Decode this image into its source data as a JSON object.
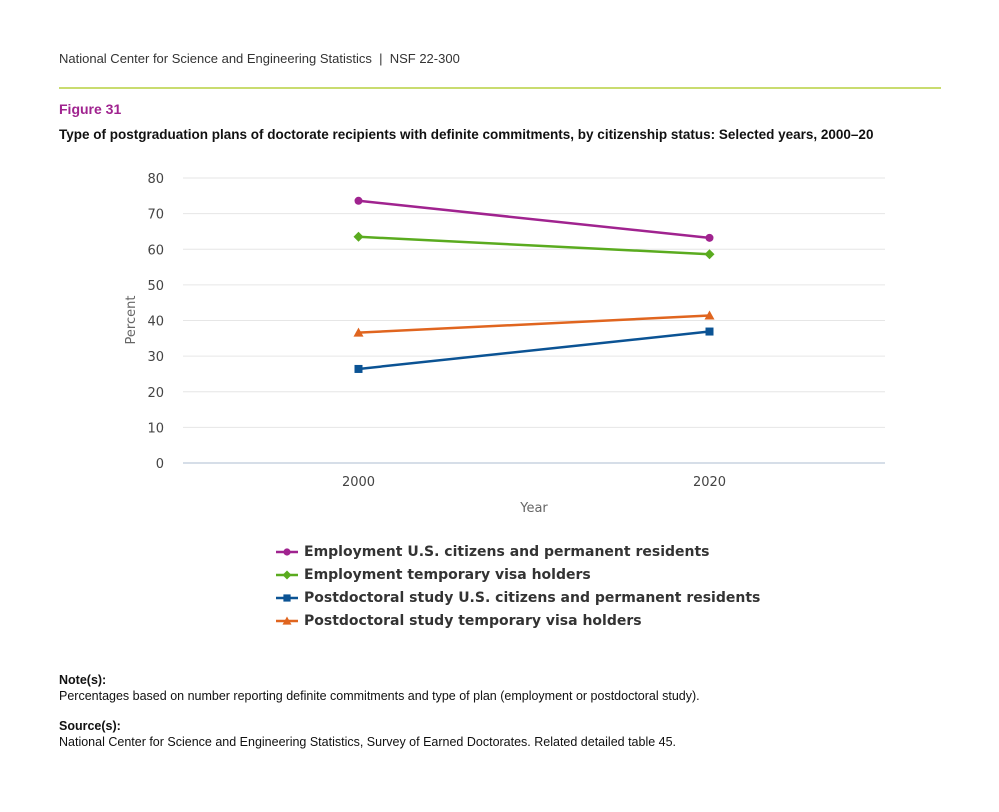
{
  "header": {
    "text": "National Center for Science and Engineering Statistics  |  NSF 22-300"
  },
  "figure_label": "Figure 31",
  "notes": {
    "note_label": "Note(s):",
    "note_text": "Percentages based on number reporting definite commitments and type of plan (employment or postdoctoral study).",
    "source_label": "Source(s):",
    "source_text": "National Center for Science and Engineering Statistics, Survey of Earned Doctorates. Related detailed table 45."
  },
  "chart_data": {
    "type": "line",
    "title": "Type of postgraduation plans of doctorate recipients with definite commitments, by citizenship status: Selected years, 2000–20",
    "xlabel": "Year",
    "ylabel": "Percent",
    "x": [
      2000,
      2020
    ],
    "xlim": [
      1990,
      2030
    ],
    "ylim": [
      0,
      80
    ],
    "yticks": [
      0,
      10,
      20,
      30,
      40,
      50,
      60,
      70,
      80
    ],
    "xticks": [
      2000,
      2020
    ],
    "grid": true,
    "legend_placement": "bottom",
    "series": [
      {
        "name": "Employment U.S. citizens and permanent residents",
        "values": [
          73.6,
          63.2
        ],
        "color": "#a0238f",
        "marker": "circle"
      },
      {
        "name": "Employment temporary visa holders",
        "values": [
          63.5,
          58.6
        ],
        "color": "#5aab1f",
        "marker": "diamond"
      },
      {
        "name": "Postdoctoral study U.S. citizens and permanent residents",
        "values": [
          26.4,
          36.9
        ],
        "color": "#0b5394",
        "marker": "square"
      },
      {
        "name": "Postdoctoral study temporary visa holders",
        "values": [
          36.6,
          41.4
        ],
        "color": "#e0651f",
        "marker": "triangle"
      }
    ]
  }
}
